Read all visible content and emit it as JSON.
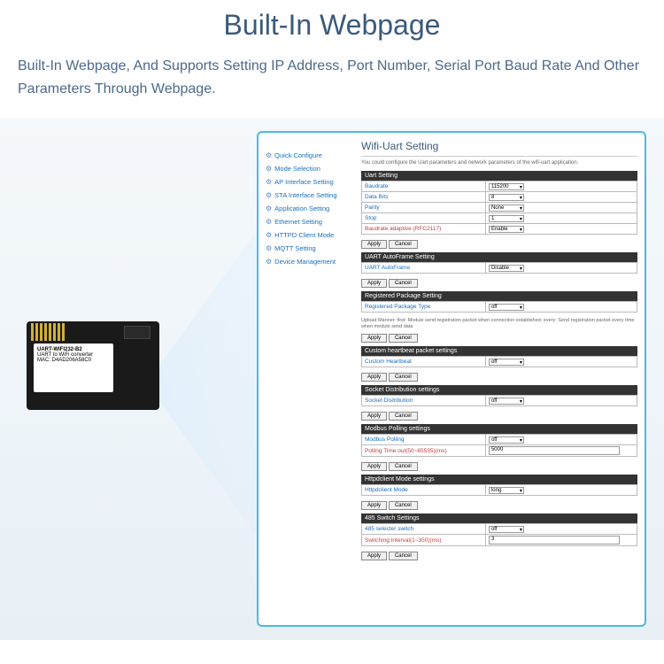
{
  "header": {
    "title": "Built-In Webpage",
    "subtitle": "Built-In Webpage, And Supports Setting IP Address, Port Number, Serial Port Baud Rate And Other Parameters Through Webpage."
  },
  "module": {
    "product": "UART-WIFI232-B2",
    "desc": "UART to WiFi converter",
    "mac": "MAC: D4AD206A58C0"
  },
  "sidebar": {
    "items": [
      "Quick Configure",
      "Mode Selection",
      "AP Interface Setting",
      "STA Interface Setting",
      "Application Setting",
      "Ethernet Setting",
      "HTTPD Client Mode",
      "MQTT Setting",
      "Device Management"
    ]
  },
  "page": {
    "title": "Wifi-Uart Setting",
    "desc": "You could configure the Uart parameters and network parameters of the wifi-uart application."
  },
  "uart": {
    "header": "Uart Setting",
    "baudrate_label": "Baudrate",
    "baudrate_val": "115200",
    "databits_label": "Data Bits",
    "databits_val": "8",
    "parity_label": "Parity",
    "parity_val": "None",
    "stop_label": "Stop",
    "stop_val": "1",
    "adaptive_label": "Baudrate adaptive (RFC2117)",
    "adaptive_val": "Enable"
  },
  "autoframe": {
    "header": "UART AutoFrame Setting",
    "label": "UART AutoFrame",
    "val": "Disable"
  },
  "regpkg": {
    "header": "Registered Package Setting",
    "label": "Registered Package Type",
    "val": "off",
    "desc": "Upload Manner: first: Module send registration packet when connection established; every: Send registration packet every time when module send data"
  },
  "heartbeat": {
    "header": "Custom heartbeat packet settings",
    "label": "Custom Heartbeat",
    "val": "off"
  },
  "socket": {
    "header": "Socket Distribution settings",
    "label": "Socket Distribution",
    "val": "off"
  },
  "modbus": {
    "header": "Modbus Polling settings",
    "label": "Modbus Polling",
    "val": "off",
    "time_label": "Polling Time out(50~65535)(ms)",
    "time_val": "5000"
  },
  "httpd": {
    "header": "Httpdclient Mode settings",
    "label": "Httpdclient Mode",
    "val": "long"
  },
  "switch485": {
    "header": "485 Switch Settings",
    "label": "485 selecter switch",
    "val": "off",
    "interval_label": "Switching Interval(1~350)(ms)",
    "interval_val": "3"
  },
  "buttons": {
    "apply": "Apply",
    "cancel": "Cancel"
  }
}
